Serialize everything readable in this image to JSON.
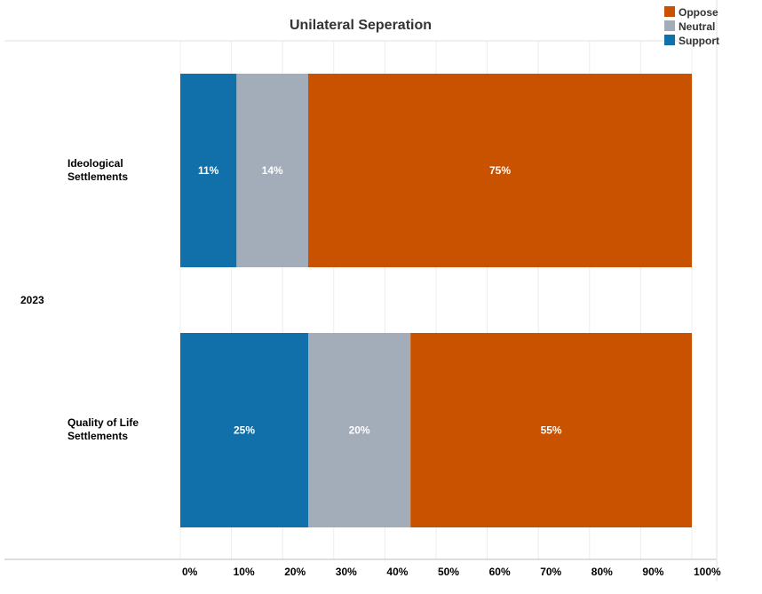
{
  "chart_data": {
    "type": "bar",
    "orientation": "horizontal",
    "stacked": true,
    "title": "Unilateral Seperation",
    "group_label": "2023",
    "categories": [
      "Ideological\nSettlements",
      "Quality of Life\nSettlements"
    ],
    "series": [
      {
        "name": "Support",
        "values": [
          11,
          25
        ],
        "labels": [
          "11%",
          "25%"
        ]
      },
      {
        "name": "Neutral",
        "values": [
          14,
          20
        ],
        "labels": [
          "14%",
          "20%"
        ]
      },
      {
        "name": "Oppose",
        "values": [
          75,
          55
        ],
        "labels": [
          "75%",
          "55%"
        ]
      }
    ],
    "legend": [
      "Oppose",
      "Neutral",
      "Support"
    ],
    "legend_position": "top-right",
    "xlim": [
      0,
      100
    ],
    "x_ticks": [
      "0%",
      "10%",
      "20%",
      "30%",
      "40%",
      "50%",
      "60%",
      "70%",
      "80%",
      "90%",
      "100%"
    ],
    "colors": {
      "Support": "#1170aa",
      "Neutral": "#a3acb9",
      "Oppose": "#c85200"
    },
    "grid": true
  }
}
